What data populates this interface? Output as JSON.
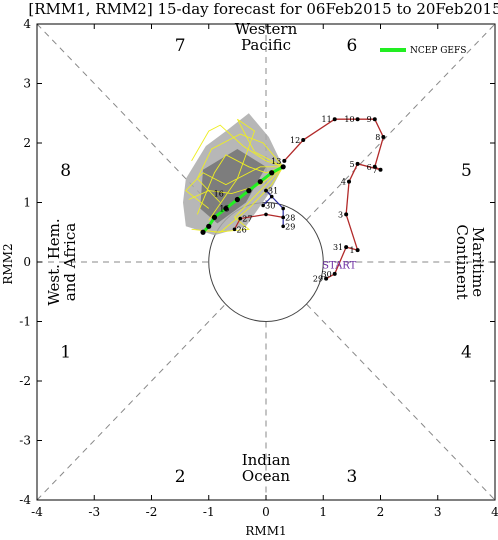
{
  "chart_data": {
    "type": "line",
    "title": "[RMM1, RMM2] 15-day forecast for 06Feb2015 to 20Feb2015",
    "xlabel": "RMM1",
    "ylabel": "RMM2",
    "xlim": [
      -4,
      4
    ],
    "ylim": [
      -4,
      4
    ],
    "xticks": [
      "-4",
      "-3",
      "-2",
      "-1",
      "0",
      "1",
      "2",
      "3",
      "4"
    ],
    "yticks": [
      "-4",
      "-3",
      "-2",
      "-1",
      "0",
      "1",
      "2",
      "3",
      "4"
    ],
    "unit_circle_radius": 1,
    "phases": [
      {
        "label": "1",
        "x": -3.5,
        "y": -1.5
      },
      {
        "label": "2",
        "x": -1.5,
        "y": -3.6
      },
      {
        "label": "3",
        "x": 1.5,
        "y": -3.6
      },
      {
        "label": "4",
        "x": 3.5,
        "y": -1.5
      },
      {
        "label": "5",
        "x": 3.5,
        "y": 1.55
      },
      {
        "label": "6",
        "x": 1.5,
        "y": 3.65
      },
      {
        "label": "7",
        "x": -1.5,
        "y": 3.65
      },
      {
        "label": "8",
        "x": -3.5,
        "y": 1.55
      }
    ],
    "region_labels": [
      {
        "lines": [
          "Western",
          "Pacific"
        ],
        "x": 0,
        "y": 3.7,
        "orient": "horizontal"
      },
      {
        "lines": [
          "Indian",
          "Ocean"
        ],
        "x": 0,
        "y": -3.55,
        "orient": "horizontal"
      },
      {
        "lines": [
          "West. Hem.",
          "and Africa"
        ],
        "x": -3.55,
        "y": 0,
        "orient": "vertical-left"
      },
      {
        "lines": [
          "Maritime",
          "Continent"
        ],
        "x": 3.55,
        "y": 0,
        "orient": "vertical-right"
      }
    ],
    "legend": {
      "label": "NCEP GEFS",
      "color": "#22ee22",
      "position": "top-right"
    },
    "start_label": "START",
    "observed": {
      "name": "observed",
      "color": "#b22a2a",
      "points": [
        {
          "x": 1.05,
          "y": -0.28,
          "label": "29"
        },
        {
          "x": 1.2,
          "y": -0.2,
          "label": "30"
        },
        {
          "x": 1.4,
          "y": 0.25,
          "label": "31"
        },
        {
          "x": 1.6,
          "y": 0.2,
          "label": "1"
        },
        {
          "x": 1.4,
          "y": 0.8,
          "label": "3"
        },
        {
          "x": 1.45,
          "y": 1.35,
          "label": "4"
        },
        {
          "x": 1.6,
          "y": 1.65,
          "label": "5"
        },
        {
          "x": 2.0,
          "y": 1.55,
          "label": "7"
        },
        {
          "x": 1.9,
          "y": 1.6,
          "label": "6"
        },
        {
          "x": 2.05,
          "y": 2.1,
          "label": "8"
        },
        {
          "x": 1.9,
          "y": 2.4,
          "label": "9"
        },
        {
          "x": 1.6,
          "y": 2.4,
          "label": "10"
        },
        {
          "x": 1.2,
          "y": 2.4,
          "label": "11"
        },
        {
          "x": 0.65,
          "y": 2.05,
          "label": "12"
        },
        {
          "x": 0.32,
          "y": 1.7,
          "label": "13"
        }
      ]
    },
    "ensemble_mean": {
      "name": "NCEP GEFS",
      "color": "#22ee22",
      "points": [
        {
          "x": 0.3,
          "y": 1.6
        },
        {
          "x": 0.1,
          "y": 1.5
        },
        {
          "x": -0.1,
          "y": 1.35
        },
        {
          "x": -0.3,
          "y": 1.2
        },
        {
          "x": -0.5,
          "y": 1.05
        },
        {
          "x": -0.7,
          "y": 0.9
        },
        {
          "x": -0.9,
          "y": 0.75
        },
        {
          "x": -1.0,
          "y": 0.6
        },
        {
          "x": -1.1,
          "y": 0.5
        }
      ]
    },
    "forecast_labels": [
      {
        "x": 0.0,
        "y": 1.2,
        "label": "31"
      },
      {
        "x": -0.05,
        "y": 0.95,
        "label": "30"
      },
      {
        "x": 0.3,
        "y": 0.75,
        "label": "28"
      },
      {
        "x": -0.45,
        "y": 0.73,
        "label": "27"
      },
      {
        "x": 0.3,
        "y": 0.6,
        "label": "29"
      },
      {
        "x": -0.55,
        "y": 0.55,
        "label": "26"
      },
      {
        "x": -0.95,
        "y": 1.15,
        "label": "16"
      },
      {
        "x": -0.85,
        "y": 0.9,
        "label": "15"
      }
    ]
  }
}
